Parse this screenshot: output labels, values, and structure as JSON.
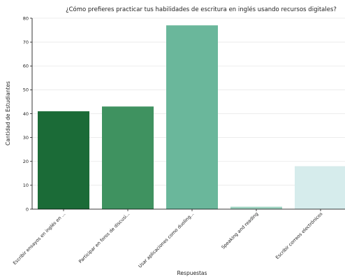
{
  "chart_data": {
    "type": "bar",
    "title": "¿Cómo prefieres practicar tus habilidades de escritura en inglés usando recursos digitales?",
    "xlabel": "Respuestas",
    "ylabel": "Cantidad de Estudiantes",
    "categories": [
      "Escribir ensayos en inglés en ...",
      "Participar en foros de discusi...",
      "Usar aplicaciones como duoling...",
      "Speaking and reading",
      "Escribir correos electrónicos"
    ],
    "values": [
      41,
      43,
      77,
      1,
      18
    ],
    "colors": [
      "#1b6b37",
      "#3f9260",
      "#6ab79b",
      "#9ed3c0",
      "#d6ecec"
    ],
    "ylim": [
      0,
      80
    ],
    "yticks": [
      0,
      10,
      20,
      30,
      40,
      50,
      60,
      70,
      80
    ],
    "grid": true
  }
}
